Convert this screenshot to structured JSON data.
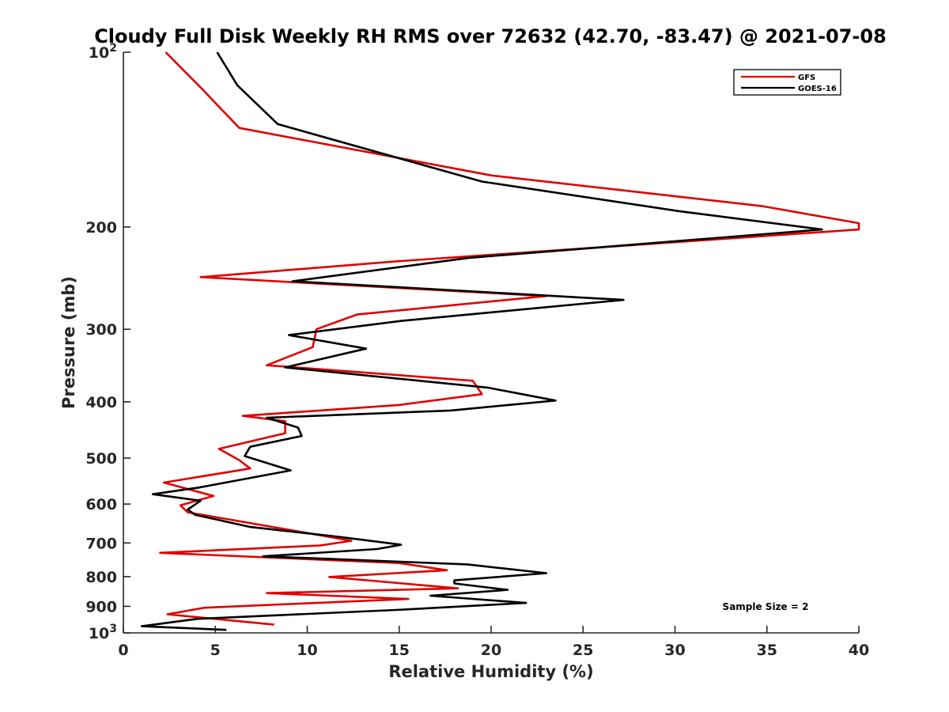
{
  "chart_data": {
    "type": "line",
    "title": "Cloudy Full Disk Weekly RH RMS over 72632 (42.70, -83.47) @ 2021-07-08",
    "xlabel": "Relative Humidity (%)",
    "ylabel": "Pressure (mb)",
    "xlim": [
      0,
      40
    ],
    "ylim": [
      100,
      1000
    ],
    "yscale": "log",
    "y_reversed": true,
    "grid": false,
    "legend_position": "top-right",
    "x_ticks": [
      "0",
      "5",
      "10",
      "15",
      "20",
      "25",
      "30",
      "35",
      "40"
    ],
    "y_ticks": [
      {
        "value": 100,
        "base": "10",
        "exp": "2"
      },
      {
        "value": 200,
        "label": "200"
      },
      {
        "value": 300,
        "label": "300"
      },
      {
        "value": 400,
        "label": "400"
      },
      {
        "value": 500,
        "label": "500"
      },
      {
        "value": 600,
        "label": "600"
      },
      {
        "value": 700,
        "label": "700"
      },
      {
        "value": 800,
        "label": "800"
      },
      {
        "value": 900,
        "label": "900"
      },
      {
        "value": 1000,
        "base": "10",
        "exp": "3"
      }
    ],
    "annotation": "Sample Size = 2",
    "series": [
      {
        "name": "GFS",
        "color": "#e00000",
        "points": [
          [
            2.3,
            100
          ],
          [
            4.2,
            115
          ],
          [
            6.3,
            135
          ],
          [
            20.0,
            163
          ],
          [
            34.7,
            184
          ],
          [
            40.0,
            197
          ],
          [
            40.0,
            202
          ],
          [
            15.0,
            229
          ],
          [
            4.2,
            244
          ],
          [
            23.0,
            263
          ],
          [
            12.7,
            283
          ],
          [
            10.5,
            300
          ],
          [
            10.3,
            322
          ],
          [
            7.8,
            346
          ],
          [
            19.0,
            368
          ],
          [
            19.5,
            388
          ],
          [
            15.0,
            405
          ],
          [
            6.5,
            423
          ],
          [
            8.8,
            432
          ],
          [
            8.8,
            453
          ],
          [
            5.2,
            482
          ],
          [
            6.3,
            504
          ],
          [
            6.9,
            521
          ],
          [
            2.2,
            551
          ],
          [
            4.9,
            581
          ],
          [
            3.1,
            603
          ],
          [
            3.5,
            620
          ],
          [
            10.5,
            677
          ],
          [
            12.4,
            694
          ],
          [
            10.7,
            707
          ],
          [
            2.0,
            728
          ],
          [
            15.0,
            758
          ],
          [
            17.6,
            780
          ],
          [
            11.2,
            801
          ],
          [
            18.2,
            838
          ],
          [
            7.8,
            854
          ],
          [
            15.5,
            874
          ],
          [
            4.4,
            905
          ],
          [
            2.4,
            929
          ],
          [
            8.2,
            968
          ]
        ]
      },
      {
        "name": "GOES-16",
        "color": "#000000",
        "points": [
          [
            5.1,
            100
          ],
          [
            6.2,
            114
          ],
          [
            8.4,
            133
          ],
          [
            19.5,
            167
          ],
          [
            30.3,
            188
          ],
          [
            38.0,
            202
          ],
          [
            18.8,
            226
          ],
          [
            9.2,
            248
          ],
          [
            27.2,
            267
          ],
          [
            15.2,
            290
          ],
          [
            9.0,
            307
          ],
          [
            13.2,
            324
          ],
          [
            8.8,
            349
          ],
          [
            19.8,
            378
          ],
          [
            23.5,
            398
          ],
          [
            17.8,
            414
          ],
          [
            7.8,
            426
          ],
          [
            9.5,
            443
          ],
          [
            9.7,
            458
          ],
          [
            6.9,
            478
          ],
          [
            6.6,
            496
          ],
          [
            9.1,
            525
          ],
          [
            4.1,
            562
          ],
          [
            1.6,
            577
          ],
          [
            4.2,
            592
          ],
          [
            3.5,
            613
          ],
          [
            3.9,
            626
          ],
          [
            6.9,
            657
          ],
          [
            11.7,
            683
          ],
          [
            15.1,
            705
          ],
          [
            13.8,
            717
          ],
          [
            7.6,
            738
          ],
          [
            18.7,
            762
          ],
          [
            23.0,
            789
          ],
          [
            18.0,
            812
          ],
          [
            18.0,
            822
          ],
          [
            20.9,
            843
          ],
          [
            16.7,
            863
          ],
          [
            21.9,
            888
          ],
          [
            15.2,
            912
          ],
          [
            4.0,
            946
          ],
          [
            1.0,
            974
          ],
          [
            5.6,
            988
          ]
        ]
      }
    ]
  }
}
